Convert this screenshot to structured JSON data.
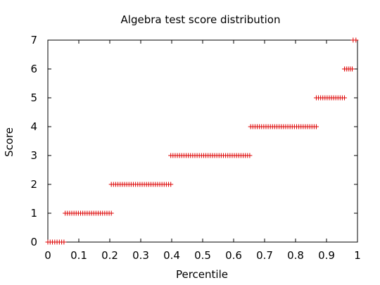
{
  "chart_data": {
    "type": "scatter",
    "title": "Algebra test score distribution",
    "xlabel": "Percentile",
    "ylabel": "Score",
    "xlim": [
      0,
      1
    ],
    "ylim": [
      0,
      7
    ],
    "xticks": [
      0,
      0.1,
      0.2,
      0.3,
      0.4,
      0.5,
      0.6,
      0.7,
      0.8,
      0.9,
      1
    ],
    "xtick_labels": [
      "0",
      "0.1",
      "0.2",
      "0.3",
      "0.4",
      "0.5",
      "0.6",
      "0.7",
      "0.8",
      "0.9",
      "1"
    ],
    "yticks": [
      0,
      1,
      2,
      3,
      4,
      5,
      6,
      7
    ],
    "ytick_labels": [
      "0",
      "1",
      "2",
      "3",
      "4",
      "5",
      "6",
      "7"
    ],
    "grid": false,
    "marker": "plus",
    "marker_color": "#dd0000",
    "series": [
      {
        "segments": [
          {
            "score": 0,
            "x_start": 0.0,
            "x_end": 0.052
          },
          {
            "score": 1,
            "x_start": 0.056,
            "x_end": 0.205
          },
          {
            "score": 2,
            "x_start": 0.205,
            "x_end": 0.397
          },
          {
            "score": 3,
            "x_start": 0.397,
            "x_end": 0.652
          },
          {
            "score": 4,
            "x_start": 0.655,
            "x_end": 0.867
          },
          {
            "score": 5,
            "x_start": 0.867,
            "x_end": 0.958
          },
          {
            "score": 6,
            "x_start": 0.958,
            "x_end": 0.983
          },
          {
            "score": 7,
            "x_start": 0.986,
            "x_end": 0.995
          }
        ]
      }
    ]
  }
}
